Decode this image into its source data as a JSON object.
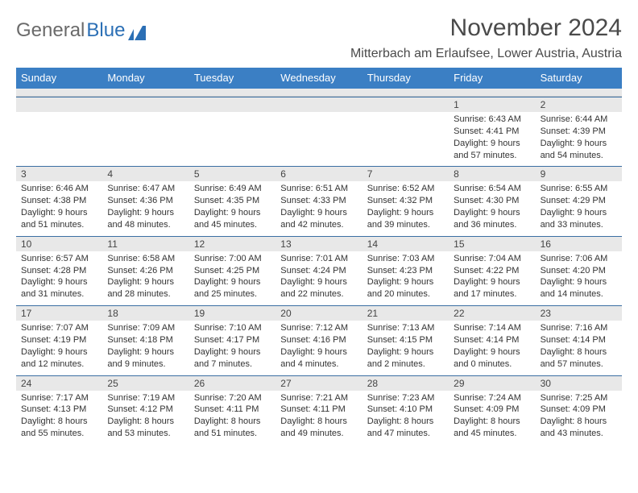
{
  "logo": {
    "text1": "General",
    "text2": "Blue"
  },
  "header": {
    "month_title": "November 2024",
    "location": "Mitterbach am Erlaufsee, Lower Austria, Austria"
  },
  "colors": {
    "header_bg": "#3b7fc4",
    "header_text": "#ffffff",
    "daynum_bg": "#e8e8e8",
    "body_text": "#333333",
    "rule": "#3b6fa3"
  },
  "weekdays": [
    "Sunday",
    "Monday",
    "Tuesday",
    "Wednesday",
    "Thursday",
    "Friday",
    "Saturday"
  ],
  "weeks": [
    [
      null,
      null,
      null,
      null,
      null,
      {
        "n": "1",
        "sunrise": "Sunrise: 6:43 AM",
        "sunset": "Sunset: 4:41 PM",
        "day1": "Daylight: 9 hours",
        "day2": "and 57 minutes."
      },
      {
        "n": "2",
        "sunrise": "Sunrise: 6:44 AM",
        "sunset": "Sunset: 4:39 PM",
        "day1": "Daylight: 9 hours",
        "day2": "and 54 minutes."
      }
    ],
    [
      {
        "n": "3",
        "sunrise": "Sunrise: 6:46 AM",
        "sunset": "Sunset: 4:38 PM",
        "day1": "Daylight: 9 hours",
        "day2": "and 51 minutes."
      },
      {
        "n": "4",
        "sunrise": "Sunrise: 6:47 AM",
        "sunset": "Sunset: 4:36 PM",
        "day1": "Daylight: 9 hours",
        "day2": "and 48 minutes."
      },
      {
        "n": "5",
        "sunrise": "Sunrise: 6:49 AM",
        "sunset": "Sunset: 4:35 PM",
        "day1": "Daylight: 9 hours",
        "day2": "and 45 minutes."
      },
      {
        "n": "6",
        "sunrise": "Sunrise: 6:51 AM",
        "sunset": "Sunset: 4:33 PM",
        "day1": "Daylight: 9 hours",
        "day2": "and 42 minutes."
      },
      {
        "n": "7",
        "sunrise": "Sunrise: 6:52 AM",
        "sunset": "Sunset: 4:32 PM",
        "day1": "Daylight: 9 hours",
        "day2": "and 39 minutes."
      },
      {
        "n": "8",
        "sunrise": "Sunrise: 6:54 AM",
        "sunset": "Sunset: 4:30 PM",
        "day1": "Daylight: 9 hours",
        "day2": "and 36 minutes."
      },
      {
        "n": "9",
        "sunrise": "Sunrise: 6:55 AM",
        "sunset": "Sunset: 4:29 PM",
        "day1": "Daylight: 9 hours",
        "day2": "and 33 minutes."
      }
    ],
    [
      {
        "n": "10",
        "sunrise": "Sunrise: 6:57 AM",
        "sunset": "Sunset: 4:28 PM",
        "day1": "Daylight: 9 hours",
        "day2": "and 31 minutes."
      },
      {
        "n": "11",
        "sunrise": "Sunrise: 6:58 AM",
        "sunset": "Sunset: 4:26 PM",
        "day1": "Daylight: 9 hours",
        "day2": "and 28 minutes."
      },
      {
        "n": "12",
        "sunrise": "Sunrise: 7:00 AM",
        "sunset": "Sunset: 4:25 PM",
        "day1": "Daylight: 9 hours",
        "day2": "and 25 minutes."
      },
      {
        "n": "13",
        "sunrise": "Sunrise: 7:01 AM",
        "sunset": "Sunset: 4:24 PM",
        "day1": "Daylight: 9 hours",
        "day2": "and 22 minutes."
      },
      {
        "n": "14",
        "sunrise": "Sunrise: 7:03 AM",
        "sunset": "Sunset: 4:23 PM",
        "day1": "Daylight: 9 hours",
        "day2": "and 20 minutes."
      },
      {
        "n": "15",
        "sunrise": "Sunrise: 7:04 AM",
        "sunset": "Sunset: 4:22 PM",
        "day1": "Daylight: 9 hours",
        "day2": "and 17 minutes."
      },
      {
        "n": "16",
        "sunrise": "Sunrise: 7:06 AM",
        "sunset": "Sunset: 4:20 PM",
        "day1": "Daylight: 9 hours",
        "day2": "and 14 minutes."
      }
    ],
    [
      {
        "n": "17",
        "sunrise": "Sunrise: 7:07 AM",
        "sunset": "Sunset: 4:19 PM",
        "day1": "Daylight: 9 hours",
        "day2": "and 12 minutes."
      },
      {
        "n": "18",
        "sunrise": "Sunrise: 7:09 AM",
        "sunset": "Sunset: 4:18 PM",
        "day1": "Daylight: 9 hours",
        "day2": "and 9 minutes."
      },
      {
        "n": "19",
        "sunrise": "Sunrise: 7:10 AM",
        "sunset": "Sunset: 4:17 PM",
        "day1": "Daylight: 9 hours",
        "day2": "and 7 minutes."
      },
      {
        "n": "20",
        "sunrise": "Sunrise: 7:12 AM",
        "sunset": "Sunset: 4:16 PM",
        "day1": "Daylight: 9 hours",
        "day2": "and 4 minutes."
      },
      {
        "n": "21",
        "sunrise": "Sunrise: 7:13 AM",
        "sunset": "Sunset: 4:15 PM",
        "day1": "Daylight: 9 hours",
        "day2": "and 2 minutes."
      },
      {
        "n": "22",
        "sunrise": "Sunrise: 7:14 AM",
        "sunset": "Sunset: 4:14 PM",
        "day1": "Daylight: 9 hours",
        "day2": "and 0 minutes."
      },
      {
        "n": "23",
        "sunrise": "Sunrise: 7:16 AM",
        "sunset": "Sunset: 4:14 PM",
        "day1": "Daylight: 8 hours",
        "day2": "and 57 minutes."
      }
    ],
    [
      {
        "n": "24",
        "sunrise": "Sunrise: 7:17 AM",
        "sunset": "Sunset: 4:13 PM",
        "day1": "Daylight: 8 hours",
        "day2": "and 55 minutes."
      },
      {
        "n": "25",
        "sunrise": "Sunrise: 7:19 AM",
        "sunset": "Sunset: 4:12 PM",
        "day1": "Daylight: 8 hours",
        "day2": "and 53 minutes."
      },
      {
        "n": "26",
        "sunrise": "Sunrise: 7:20 AM",
        "sunset": "Sunset: 4:11 PM",
        "day1": "Daylight: 8 hours",
        "day2": "and 51 minutes."
      },
      {
        "n": "27",
        "sunrise": "Sunrise: 7:21 AM",
        "sunset": "Sunset: 4:11 PM",
        "day1": "Daylight: 8 hours",
        "day2": "and 49 minutes."
      },
      {
        "n": "28",
        "sunrise": "Sunrise: 7:23 AM",
        "sunset": "Sunset: 4:10 PM",
        "day1": "Daylight: 8 hours",
        "day2": "and 47 minutes."
      },
      {
        "n": "29",
        "sunrise": "Sunrise: 7:24 AM",
        "sunset": "Sunset: 4:09 PM",
        "day1": "Daylight: 8 hours",
        "day2": "and 45 minutes."
      },
      {
        "n": "30",
        "sunrise": "Sunrise: 7:25 AM",
        "sunset": "Sunset: 4:09 PM",
        "day1": "Daylight: 8 hours",
        "day2": "and 43 minutes."
      }
    ]
  ]
}
